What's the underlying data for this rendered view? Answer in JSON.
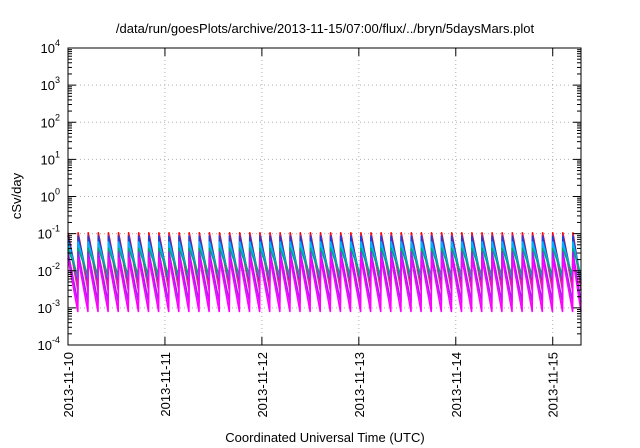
{
  "chart_data": {
    "type": "line",
    "title": "/data/run/goesPlots/archive/2013-11-15/07:00/flux/../bryn/5daysMars.plot",
    "xlabel": "Coordinated Universal Time (UTC)",
    "ylabel": "cSv/day",
    "yscale": "log",
    "ylim": [
      0.0001,
      10000
    ],
    "xlim": [
      "2013-11-10T00:00",
      "2013-11-15T07:00"
    ],
    "x_ticks": [
      "2013-11-10",
      "2013-11-11",
      "2013-11-12",
      "2013-11-13",
      "2013-11-14",
      "2013-11-15"
    ],
    "y_ticks": [
      {
        "base": "10",
        "exp": "-4"
      },
      {
        "base": "10",
        "exp": "-3"
      },
      {
        "base": "10",
        "exp": "-2"
      },
      {
        "base": "10",
        "exp": "-1"
      },
      {
        "base": "10",
        "exp": "0"
      },
      {
        "base": "10",
        "exp": "1"
      },
      {
        "base": "10",
        "exp": "2"
      },
      {
        "base": "10",
        "exp": "3"
      },
      {
        "base": "10",
        "exp": "4"
      }
    ],
    "grid": true,
    "sawtooth_period_hours": 2.5,
    "series": [
      {
        "color": "#ff0000",
        "peak": 0.105,
        "trough": 0.0045
      },
      {
        "color": "#e0288c",
        "peak": 0.09,
        "trough": 0.003
      },
      {
        "color": "#1e3fd6",
        "peak": 0.085,
        "trough": 0.0055
      },
      {
        "color": "#00b4ff",
        "peak": 0.06,
        "trough": 0.0065
      },
      {
        "color": "#00a878",
        "peak": 0.04,
        "trough": 0.0075
      },
      {
        "color": "#a020f0",
        "peak": 0.032,
        "trough": 0.0014
      },
      {
        "color": "#ff00ff",
        "peak": 0.022,
        "trough": 0.0008
      }
    ]
  }
}
